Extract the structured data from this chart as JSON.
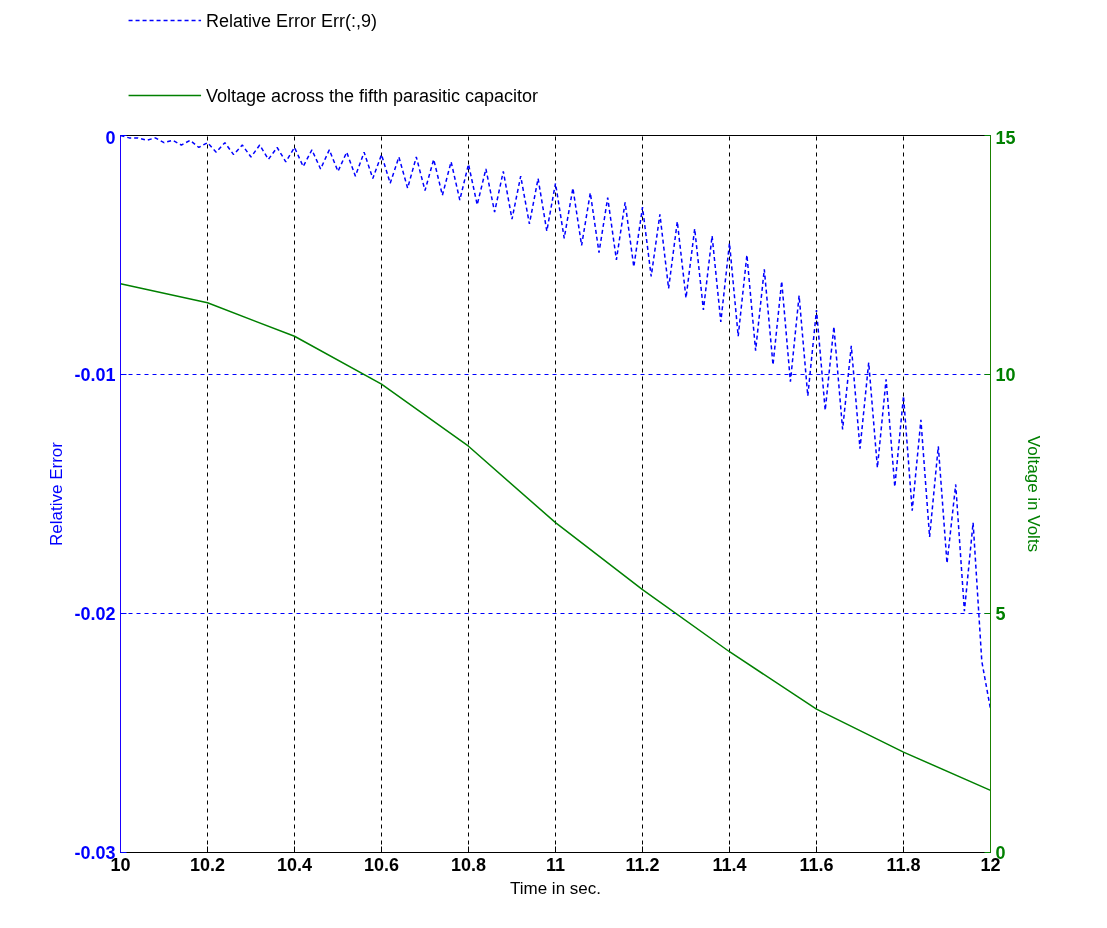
{
  "chart_data": {
    "type": "line",
    "xlabel": "Time in sec.",
    "ylabel": "Relative Error",
    "y2label": "Voltage in Volts",
    "xlim": [
      10,
      12
    ],
    "xticks": [
      10,
      10.2,
      10.4,
      10.6,
      10.8,
      11,
      11.2,
      11.4,
      11.6,
      11.8,
      12
    ],
    "ylim": [
      -0.03,
      0
    ],
    "yticks": [
      -0.03,
      -0.02,
      -0.01,
      0
    ],
    "y2lim": [
      0,
      15
    ],
    "y2ticks": [
      0,
      5,
      10,
      15
    ],
    "grid": true,
    "legend": "top left",
    "series": [
      {
        "name": "Relative Error Err(:,9)",
        "color": "#0000ff",
        "line_style": "dashed",
        "x": [
          10.0,
          10.02,
          10.04,
          10.06,
          10.08,
          10.1,
          10.12,
          10.14,
          10.16,
          10.18,
          10.2,
          10.22,
          10.24,
          10.26,
          10.28,
          10.3,
          10.32,
          10.34,
          10.36,
          10.38,
          10.4,
          10.42,
          10.44,
          10.46,
          10.48,
          10.5,
          10.52,
          10.54,
          10.56,
          10.58,
          10.6,
          10.62,
          10.64,
          10.66,
          10.68,
          10.7,
          10.72,
          10.74,
          10.76,
          10.78,
          10.8,
          10.82,
          10.84,
          10.86,
          10.88,
          10.9,
          10.92,
          10.94,
          10.96,
          10.98,
          11.0,
          11.02,
          11.04,
          11.06,
          11.08,
          11.1,
          11.12,
          11.14,
          11.16,
          11.18,
          11.2,
          11.22,
          11.24,
          11.26,
          11.28,
          11.3,
          11.32,
          11.34,
          11.36,
          11.38,
          11.4,
          11.42,
          11.44,
          11.46,
          11.48,
          11.5,
          11.52,
          11.54,
          11.56,
          11.58,
          11.6,
          11.62,
          11.64,
          11.66,
          11.68,
          11.7,
          11.72,
          11.74,
          11.76,
          11.78,
          11.8,
          11.82,
          11.84,
          11.86,
          11.88,
          11.9,
          11.92,
          11.94,
          11.96,
          11.98,
          12.0
        ],
        "values": [
          0.0,
          -0.0001,
          -0.0001,
          -0.0002,
          -0.0001,
          -0.0003,
          -0.0002,
          -0.0004,
          -0.0002,
          -0.0005,
          -0.0003,
          -0.0007,
          -0.0003,
          -0.0008,
          -0.0004,
          -0.0009,
          -0.0004,
          -0.001,
          -0.0005,
          -0.0011,
          -0.0005,
          -0.0013,
          -0.0006,
          -0.0014,
          -0.0006,
          -0.0015,
          -0.0007,
          -0.0017,
          -0.0007,
          -0.0018,
          -0.0008,
          -0.002,
          -0.0009,
          -0.0022,
          -0.0009,
          -0.0023,
          -0.001,
          -0.0025,
          -0.0011,
          -0.0027,
          -0.0012,
          -0.0029,
          -0.0014,
          -0.0032,
          -0.0015,
          -0.0035,
          -0.0017,
          -0.0037,
          -0.0018,
          -0.004,
          -0.002,
          -0.0043,
          -0.0022,
          -0.0046,
          -0.0024,
          -0.0049,
          -0.0026,
          -0.0052,
          -0.0028,
          -0.0055,
          -0.003,
          -0.0059,
          -0.0033,
          -0.0064,
          -0.0036,
          -0.0068,
          -0.0039,
          -0.0073,
          -0.0042,
          -0.0078,
          -0.0045,
          -0.0084,
          -0.005,
          -0.009,
          -0.0056,
          -0.0096,
          -0.0061,
          -0.0103,
          -0.0067,
          -0.0109,
          -0.0073,
          -0.0115,
          -0.008,
          -0.0123,
          -0.0088,
          -0.0131,
          -0.0095,
          -0.0139,
          -0.0102,
          -0.0147,
          -0.0109,
          -0.0157,
          -0.0119,
          -0.0168,
          -0.013,
          -0.0179,
          -0.0146,
          -0.0199,
          -0.0162,
          -0.022,
          -0.024
        ]
      },
      {
        "name": "Voltage across the fifth parasitic capacitor",
        "color": "#008000",
        "line_style": "solid",
        "axis": "y2",
        "x": [
          10,
          10.2,
          10.4,
          10.6,
          10.8,
          11,
          11.2,
          11.4,
          11.6,
          11.8,
          12
        ],
        "values": [
          11.9,
          11.5,
          10.8,
          9.8,
          8.5,
          6.9,
          5.5,
          4.2,
          3.0,
          2.1,
          1.3
        ]
      }
    ]
  }
}
